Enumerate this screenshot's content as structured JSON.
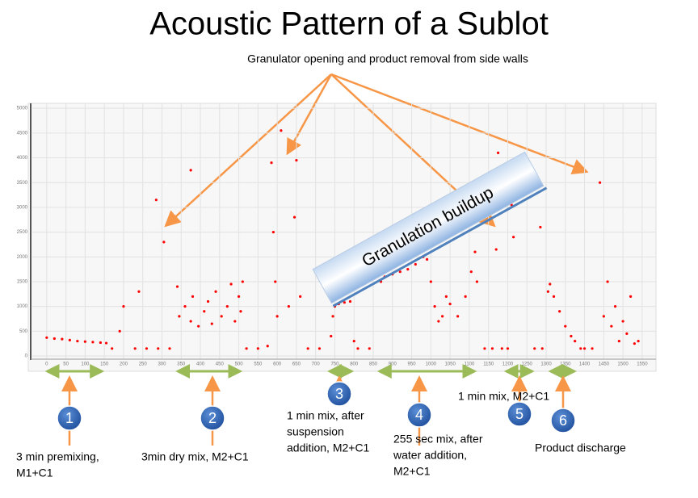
{
  "chart_data": {
    "type": "scatter",
    "title": "Acoustic Pattern of a Sublot",
    "annotation": "Granulator opening and product removal from side walls",
    "banner": "Granulation buildup",
    "xlim": [
      -48,
      1586
    ],
    "ylim": [
      -65,
      5100
    ],
    "xticks": [
      0,
      50,
      100,
      150,
      200,
      250,
      300,
      350,
      400,
      450,
      500,
      550,
      600,
      650,
      700,
      750,
      800,
      850,
      900,
      950,
      1000,
      1050,
      1100,
      1150,
      1200,
      1250,
      1300,
      1350,
      1400,
      1450,
      1500,
      1550
    ],
    "yticks": [
      0,
      500,
      1000,
      1500,
      2000,
      2500,
      3000,
      3500,
      4000,
      4500,
      5000
    ],
    "grid": true,
    "series": [
      {
        "color": "#ff0000",
        "x": [
          0,
          20,
          40,
          60,
          80,
          100,
          120,
          140,
          155,
          170,
          190,
          200,
          230,
          240,
          260,
          285,
          290,
          305,
          320,
          340,
          345,
          360,
          375,
          375,
          380,
          395,
          410,
          420,
          430,
          440,
          455,
          470,
          480,
          490,
          500,
          505,
          510,
          520,
          550,
          575,
          585,
          590,
          595,
          600,
          610,
          630,
          645,
          650,
          660,
          680,
          710,
          740,
          745,
          750,
          760,
          775,
          790,
          800,
          810,
          840,
          870,
          880,
          900,
          920,
          940,
          960,
          980,
          990,
          1000,
          1010,
          1020,
          1030,
          1040,
          1050,
          1070,
          1090,
          1105,
          1115,
          1120,
          1140,
          1160,
          1170,
          1175,
          1185,
          1200,
          1210,
          1215,
          1225,
          1240,
          1255,
          1265,
          1270,
          1285,
          1290,
          1305,
          1310,
          1320,
          1335,
          1350,
          1365,
          1375,
          1390,
          1400,
          1420,
          1440,
          1450,
          1460,
          1470,
          1480,
          1490,
          1500,
          1510,
          1520,
          1530,
          1540
        ],
        "values": [
          370,
          350,
          340,
          320,
          300,
          290,
          280,
          270,
          260,
          150,
          500,
          1000,
          150,
          1300,
          150,
          3150,
          150,
          2300,
          150,
          1400,
          800,
          1000,
          700,
          3750,
          1200,
          600,
          900,
          1100,
          650,
          1300,
          800,
          1000,
          1450,
          700,
          1200,
          900,
          1500,
          150,
          150,
          200,
          3900,
          2500,
          1500,
          800,
          4550,
          1000,
          2800,
          3950,
          1200,
          150,
          150,
          400,
          800,
          1000,
          1050,
          1080,
          1100,
          300,
          150,
          150,
          1500,
          1600,
          1650,
          1700,
          1750,
          1850,
          2000,
          1950,
          1500,
          1000,
          700,
          800,
          1200,
          1050,
          800,
          1200,
          1700,
          2100,
          1500,
          150,
          150,
          2150,
          4100,
          150,
          150,
          3050,
          2400,
          3300,
          3400,
          3450,
          3500,
          150,
          2600,
          150,
          1300,
          1450,
          1200,
          900,
          600,
          400,
          300,
          150,
          150,
          150,
          3500,
          800,
          1500,
          600,
          1000,
          300,
          700,
          450,
          1200,
          250,
          300
        ]
      }
    ],
    "phases": [
      {
        "number": "1",
        "label": [
          "3 min premixing,",
          "M1+C1"
        ],
        "xrange": [
          -5,
          150
        ]
      },
      {
        "number": "2",
        "label": [
          "3min dry mix, M2+C1"
        ],
        "xrange": [
          335,
          510
        ]
      },
      {
        "number": "3",
        "label": [
          "1 min mix, after",
          "suspension",
          "addition, M2+C1"
        ],
        "xrange": [
          730,
          800
        ]
      },
      {
        "number": "4",
        "label": [
          "255 sec mix, after",
          "water addition,",
          "M2+C1"
        ],
        "xrange": [
          860,
          1120
        ]
      },
      {
        "number": "5",
        "label": [
          "1 min mix, M2+C1"
        ],
        "xrange": [
          1190,
          1270
        ]
      },
      {
        "number": "6",
        "label": [
          "Product discharge"
        ],
        "xrange": [
          1305,
          1380
        ]
      }
    ]
  }
}
